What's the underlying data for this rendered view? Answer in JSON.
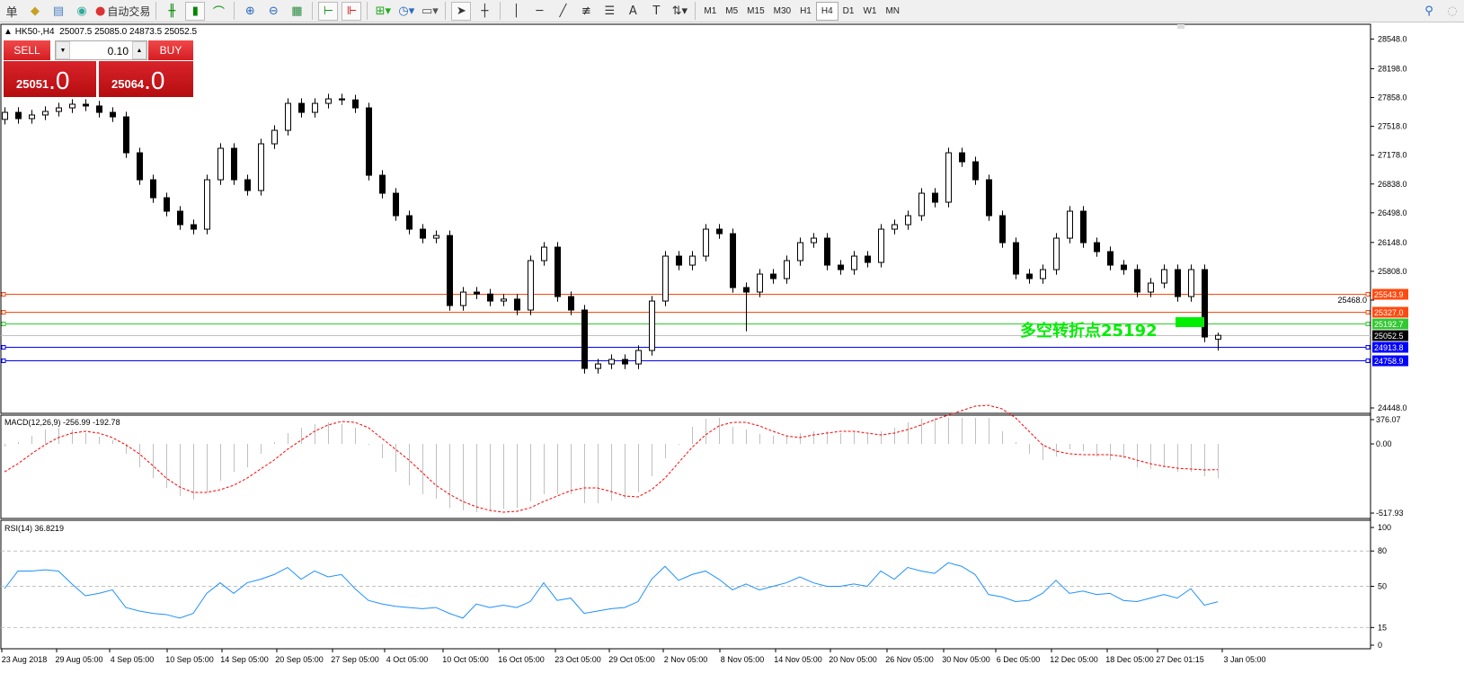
{
  "toolbar": {
    "left_cut_label": "单",
    "auto_trade_label": "自动交易",
    "timeframes": [
      "M1",
      "M5",
      "M15",
      "M30",
      "H1",
      "H4",
      "D1",
      "W1",
      "MN"
    ],
    "selected_timeframe": "H4",
    "icons": [
      "folder-icon",
      "profile-icon",
      "signal-icon",
      "auto-trade-icon",
      "bar-chart-icon",
      "candlestick-icon",
      "line-chart-icon",
      "zoom-in-icon",
      "zoom-out-icon",
      "tile-windows-icon",
      "chart-shift-icon",
      "autoscroll-icon",
      "indicators-icon",
      "periods-icon",
      "templates-icon",
      "cursor-icon",
      "crosshair-icon",
      "vertical-line-icon",
      "horizontal-line-icon",
      "trendline-icon",
      "fibonacci-icon",
      "fibo-fan-icon",
      "text-icon",
      "text-label-icon",
      "arrows-icon",
      "search-icon",
      "chat-icon"
    ]
  },
  "chart": {
    "title": "HK50-,H4",
    "ohlc": "25007.5 25085.0 24873.5 25052.5",
    "annotation": "多空转折点25192",
    "annotation_color": "#00ee00"
  },
  "trade_panel": {
    "sell_label": "SELL",
    "buy_label": "BUY",
    "lot": "0.10",
    "sell_price_main": "25051",
    "sell_price_frac": ".0",
    "buy_price_main": "25064",
    "buy_price_frac": ".0"
  },
  "chart_data": [
    {
      "type": "candlestick",
      "price_ticks": [
        "28548.0",
        "28198.0",
        "27858.0",
        "27518.0",
        "27178.0",
        "26838.0",
        "26498.0",
        "26148.0",
        "25808.0",
        "25468.0",
        "24448.0"
      ],
      "hlines": [
        {
          "value": 25543.9,
          "label": "25543.9",
          "color": "#ff4a10"
        },
        {
          "value": 25327.0,
          "label": "25327.0",
          "color": "#ff4a10"
        },
        {
          "value": 25192.7,
          "label": "25192.7",
          "color": "#32c832"
        },
        {
          "value": 25052.5,
          "label": "25052.5",
          "color": "#000000",
          "line_color": "#c0c0c0"
        },
        {
          "value": 24913.8,
          "label": "24913.8",
          "color": "#0000ff"
        },
        {
          "value": 24758.9,
          "label": "24758.9",
          "color": "#0000ff"
        }
      ],
      "candles": [
        [
          27600,
          27743,
          27540,
          27683
        ],
        [
          27683,
          27743,
          27549,
          27609
        ],
        [
          27609,
          27712,
          27549,
          27652
        ],
        [
          27652,
          27754,
          27592,
          27694
        ],
        [
          27694,
          27796,
          27634,
          27736
        ],
        [
          27736,
          27839,
          27676,
          27779
        ],
        [
          27779,
          27839,
          27698,
          27758
        ],
        [
          27758,
          27818,
          27623,
          27683
        ],
        [
          27683,
          27743,
          27570,
          27630
        ],
        [
          27630,
          27690,
          27146,
          27206
        ],
        [
          27206,
          27266,
          26828,
          26888
        ],
        [
          26888,
          26948,
          26616,
          26676
        ],
        [
          26676,
          26736,
          26457,
          26517
        ],
        [
          26517,
          26577,
          26298,
          26358
        ],
        [
          26358,
          26418,
          26245,
          26305
        ],
        [
          26305,
          26948,
          26245,
          26888
        ],
        [
          26888,
          27319,
          26828,
          27259
        ],
        [
          27259,
          27319,
          26828,
          26888
        ],
        [
          26888,
          26948,
          26701,
          26761
        ],
        [
          26761,
          27372,
          26701,
          27312
        ],
        [
          27312,
          27531,
          27252,
          27471
        ],
        [
          27471,
          27849,
          27411,
          27789
        ],
        [
          27789,
          27849,
          27623,
          27683
        ],
        [
          27683,
          27849,
          27623,
          27789
        ],
        [
          27789,
          27902,
          27729,
          27842
        ],
        [
          27842,
          27902,
          27770,
          27830
        ],
        [
          27830,
          27890,
          27676,
          27736
        ],
        [
          27736,
          27796,
          26881,
          26941
        ],
        [
          26941,
          27001,
          26669,
          26729
        ],
        [
          26729,
          26789,
          26404,
          26464
        ],
        [
          26464,
          26524,
          26245,
          26305
        ],
        [
          26305,
          26365,
          26139,
          26199
        ],
        [
          26199,
          26290,
          26139,
          26230
        ],
        [
          26230,
          26290,
          25344,
          25404
        ],
        [
          25404,
          25623,
          25344,
          25563
        ],
        [
          25563,
          25623,
          25480,
          25540
        ],
        [
          25540,
          25600,
          25397,
          25457
        ],
        [
          25457,
          25540,
          25397,
          25480
        ],
        [
          25480,
          25540,
          25291,
          25351
        ],
        [
          25351,
          25994,
          25291,
          25934
        ],
        [
          25934,
          26153,
          25874,
          26093
        ],
        [
          26093,
          26153,
          25450,
          25510
        ],
        [
          25510,
          25570,
          25291,
          25351
        ],
        [
          25351,
          25411,
          24602,
          24662
        ],
        [
          24662,
          24775,
          24602,
          24715
        ],
        [
          24715,
          24828,
          24655,
          24768
        ],
        [
          24768,
          24828,
          24655,
          24715
        ],
        [
          24715,
          24934,
          24655,
          24874
        ],
        [
          24874,
          25517,
          24814,
          25457
        ],
        [
          25457,
          26047,
          25397,
          25987
        ],
        [
          25987,
          26047,
          25821,
          25881
        ],
        [
          25881,
          26047,
          25821,
          25987
        ],
        [
          25987,
          26365,
          25927,
          26305
        ],
        [
          26305,
          26365,
          26192,
          26252
        ],
        [
          26252,
          26312,
          25556,
          25616
        ],
        [
          25616,
          25676,
          25100,
          25563
        ],
        [
          25563,
          25835,
          25503,
          25775
        ],
        [
          25775,
          25835,
          25662,
          25722
        ],
        [
          25722,
          25994,
          25662,
          25934
        ],
        [
          25934,
          26206,
          25874,
          26146
        ],
        [
          26146,
          26259,
          26086,
          26199
        ],
        [
          26199,
          26259,
          25821,
          25881
        ],
        [
          25881,
          25941,
          25768,
          25828
        ],
        [
          25828,
          26047,
          25768,
          25987
        ],
        [
          25987,
          26047,
          25853,
          25913
        ],
        [
          25913,
          26365,
          25853,
          26305
        ],
        [
          26305,
          26418,
          26245,
          26358
        ],
        [
          26358,
          26524,
          26298,
          26464
        ],
        [
          26464,
          26789,
          26404,
          26729
        ],
        [
          26729,
          26789,
          26563,
          26623
        ],
        [
          26623,
          27266,
          26563,
          27206
        ],
        [
          27206,
          27266,
          27040,
          27100
        ],
        [
          27100,
          27160,
          26828,
          26888
        ],
        [
          26888,
          26948,
          26404,
          26464
        ],
        [
          26464,
          26524,
          26086,
          26146
        ],
        [
          26146,
          26206,
          25715,
          25775
        ],
        [
          25775,
          25835,
          25662,
          25722
        ],
        [
          25722,
          25888,
          25662,
          25828
        ],
        [
          25828,
          26259,
          25768,
          26199
        ],
        [
          26199,
          26577,
          26139,
          26517
        ],
        [
          26517,
          26577,
          26086,
          26146
        ],
        [
          26146,
          26206,
          25980,
          26040
        ],
        [
          26040,
          26100,
          25821,
          25881
        ],
        [
          25881,
          25941,
          25768,
          25828
        ],
        [
          25828,
          25888,
          25503,
          25563
        ],
        [
          25563,
          25729,
          25503,
          25669
        ],
        [
          25669,
          25888,
          25609,
          25828
        ],
        [
          25828,
          25888,
          25450,
          25510
        ],
        [
          25510,
          25888,
          25450,
          25828
        ],
        [
          25828,
          25888,
          24973,
          25033
        ],
        [
          25007.5,
          25085.0,
          24873.5,
          25052.5
        ]
      ],
      "x_ticks": [
        "23 Aug 2018",
        "29 Aug 05:00",
        "4 Sep 05:00",
        "10 Sep 05:00",
        "14 Sep 05:00",
        "20 Sep 05:00",
        "27 Sep 05:00",
        "4 Oct 05:00",
        "10 Oct 05:00",
        "16 Oct 05:00",
        "23 Oct 05:00",
        "29 Oct 05:00",
        "2 Nov 05:00",
        "8 Nov 05:00",
        "14 Nov 05:00",
        "20 Nov 05:00",
        "26 Nov 05:00",
        "30 Nov 05:00",
        "6 Dec 05:00",
        "12 Dec 05:00",
        "18 Dec 05:00",
        "27 Dec 01:15",
        "3 Jan 05:00"
      ]
    },
    {
      "type": "bar+line",
      "title": "MACD(12,26,9) -256.99 -192.78",
      "ticks": [
        "376.07",
        "0.00",
        "-517.93"
      ],
      "histogram_color": "#c0c0c0",
      "signal_color": "#ff0000",
      "histogram": [
        -20,
        28,
        125,
        223,
        251,
        223,
        167,
        111,
        56,
        -74,
        -175,
        -256,
        -330,
        -390,
        -417,
        -363,
        -276,
        -209,
        -175,
        -74,
        28,
        167,
        251,
        306,
        334,
        306,
        251,
        -7,
        -108,
        -209,
        -310,
        -377,
        -410,
        -478,
        -498,
        -511,
        -498,
        -485,
        -478,
        -431,
        -377,
        -377,
        -377,
        -444,
        -444,
        -424,
        -410,
        -363,
        -242,
        -108,
        -7,
        265,
        390,
        430,
        265,
        223,
        153,
        125,
        125,
        167,
        195,
        195,
        167,
        181,
        153,
        195,
        251,
        334,
        390,
        474,
        600,
        670,
        640,
        404,
        195,
        28,
        -74,
        -121,
        -94,
        -40,
        -54,
        -94,
        -121,
        -108,
        -175,
        -188,
        -175,
        -209,
        -209,
        -242,
        -256.99
      ],
      "signal": [
        -209,
        -148,
        -74,
        -7,
        98,
        167,
        195,
        167,
        98,
        -7,
        -74,
        -162,
        -256,
        -323,
        -363,
        -363,
        -343,
        -310,
        -256,
        -188,
        -121,
        -40,
        56,
        195,
        293,
        348,
        334,
        251,
        84,
        -40,
        -121,
        -215,
        -310,
        -377,
        -431,
        -471,
        -498,
        -511,
        -505,
        -478,
        -431,
        -390,
        -350,
        -330,
        -330,
        -357,
        -390,
        -397,
        -343,
        -256,
        -141,
        -27,
        139,
        279,
        334,
        334,
        279,
        195,
        125,
        98,
        139,
        167,
        195,
        195,
        167,
        139,
        167,
        223,
        293,
        376,
        446,
        515,
        585,
        599,
        543,
        404,
        195,
        -7,
        -54,
        -74,
        -81,
        -81,
        -81,
        -94,
        -121,
        -148,
        -168,
        -182,
        -188,
        -195,
        -192.78
      ]
    },
    {
      "type": "line",
      "title": "RSI(14) 36.8219",
      "ticks": [
        "100",
        "80",
        "50",
        "15",
        "0"
      ],
      "levels": [
        80,
        50,
        15
      ],
      "color": "#1e90ff",
      "ylim": [
        0,
        100
      ],
      "values": [
        48,
        63,
        63,
        64,
        63,
        52,
        42,
        44,
        47,
        32,
        29,
        27,
        26,
        23,
        27,
        44,
        53,
        44,
        53,
        56,
        60,
        66,
        56,
        63,
        58,
        60,
        48,
        38,
        35,
        33,
        32,
        31,
        32,
        27,
        23,
        35,
        32,
        34,
        32,
        37,
        53,
        38,
        40,
        27,
        29,
        31,
        32,
        37,
        56,
        67,
        55,
        60,
        63,
        56,
        47,
        52,
        47,
        50,
        53,
        58,
        53,
        50,
        50,
        52,
        50,
        63,
        56,
        66,
        63,
        61,
        70,
        67,
        60,
        43,
        41,
        37,
        38,
        44,
        55,
        44,
        46,
        43,
        44,
        38,
        37,
        40,
        43,
        40,
        48,
        34,
        36.8219
      ]
    }
  ]
}
